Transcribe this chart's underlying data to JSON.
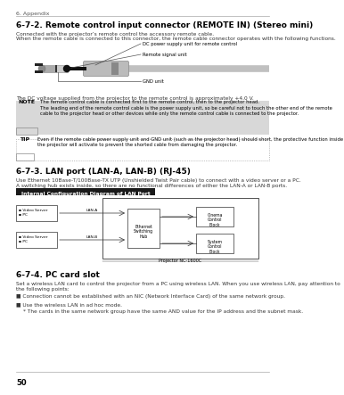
{
  "page_num": "50",
  "bg_color": "#ffffff",
  "section_header": "6. Appendix",
  "title_672": "6-7-2. Remote control input connector (REMOTE IN) (Stereo mini)",
  "desc_672_1": "Connected with the projector’s remote control the accessory remote cable.",
  "desc_672_2": "When the remote cable is connected to this connector, the remote cable connector operates with the following functions.",
  "label_dc": "DC power supply unit for remote control",
  "label_remote": "Remote signal unit",
  "label_gnd": "GND unit",
  "dc_voltage_text": "The DC voltage supplied from the projector to the remote control is approximately +4.0 V.",
  "note_label": "NOTE",
  "note_bg": "#d8d8d8",
  "note_line1": "The remote control cable is connected first to the remote control, then to the projector head.",
  "note_line2": "The leading end of the remote control cable is the power supply unit, so be careful not to touch the other end of the remote cable to the projector head or other devices while only the remote control cable is connected to the projector.",
  "tip_label": "TIP",
  "tip_text": "Even if the remote cable power supply unit and GND unit (such as the projector head) should short, the protective function inside the projector will activate to prevent the shorted cable from damaging the projector.",
  "title_673": "6-7-3. LAN port (LAN-A, LAN-B) (RJ-45)",
  "desc_673_1": "Use Ethernet 10Base-T/100Base-TX UTP (Unshielded Twist Pair cable) to connect with a video server or a PC.",
  "desc_673_2": "A switching hub exists inside, so there are no functional differences of either the LAN-A or LAN-B ports.",
  "diagram_label": "Internal Configuration Diagram of LAN Port",
  "diagram_label_bg": "#1a1a1a",
  "diagram_label_color": "#ffffff",
  "projector_label": "Projector NC-1600C",
  "hub_label": "Ethernet\nSwitching\nHub",
  "cinema_label": "Cinema\nControl\nBlock",
  "system_label": "System\nControl\nBlock",
  "lan_a_label": "LAN-A",
  "lan_b_label": "LAN-B",
  "title_674": "6-7-4. PC card slot",
  "desc_674": "Set a wireless LAN card to control the projector from a PC using wireless LAN. When you use wireless LAN, pay attention to the following points:",
  "bullet1": "Connection cannot be established with an NIC (Network Interface Card) of the same network group.",
  "bullet2": "Use the wireless LAN in ad hoc mode.",
  "subbullet1": "The cards in the same network group have the same AND value for the IP address and the subnet mask."
}
